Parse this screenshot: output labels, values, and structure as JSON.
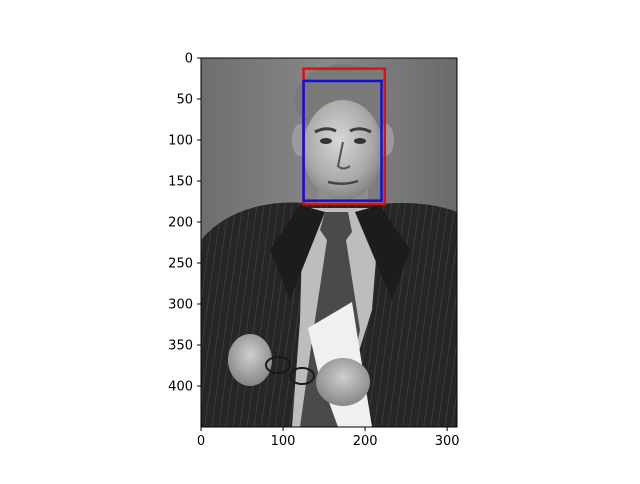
{
  "chart_data": {
    "type": "image",
    "image_description": "grayscale photograph of an elderly man in a dark pinstripe suit and tie holding eyeglasses and a sheet of paper",
    "image_size": [
      312,
      450
    ],
    "xlim": [
      0,
      312
    ],
    "ylim": [
      450,
      0
    ],
    "xticks": [
      "0",
      "100",
      "200",
      "300"
    ],
    "yticks": [
      "0",
      "50",
      "100",
      "150",
      "200",
      "250",
      "300",
      "350",
      "400"
    ],
    "boxes": [
      {
        "color": "#e01010",
        "x0": 125,
        "y0": 13,
        "x1": 224,
        "y1": 178
      },
      {
        "color": "#1010e0",
        "x0": 125,
        "y0": 28,
        "x1": 220,
        "y1": 174
      }
    ]
  }
}
